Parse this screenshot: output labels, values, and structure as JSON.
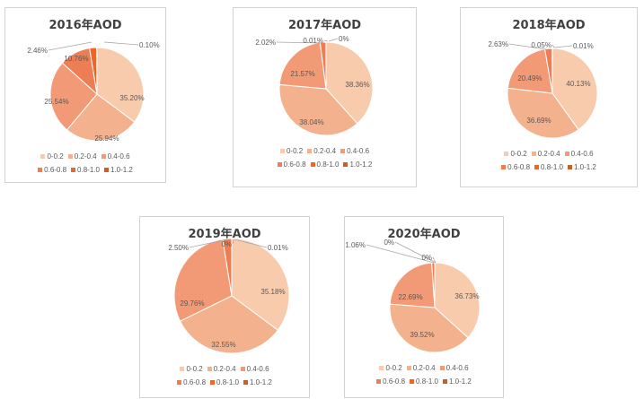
{
  "legend_categories": [
    "0-0.2",
    "0.2-0.4",
    "0.4-0.6",
    "0.6-0.8",
    "0.8-1.0",
    "1.0-1.2"
  ],
  "colors": [
    "#f8cbad",
    "#f4b18e",
    "#f29a76",
    "#ed7d52",
    "#ed6527",
    "#c65f2c"
  ],
  "chart_data": [
    {
      "type": "pie",
      "title": "2016年AOD",
      "categories": [
        "0-0.2",
        "0.2-0.4",
        "0.4-0.6",
        "0.6-0.8",
        "0.8-1.0",
        "1.0-1.2"
      ],
      "values": [
        35.2,
        25.94,
        25.54,
        10.76,
        2.46,
        0.1
      ],
      "labels": [
        "35.20%",
        "25.94%",
        "25.54%",
        "10.76%",
        "2.46%",
        "0.10%"
      ],
      "legend_position": "bottom"
    },
    {
      "type": "pie",
      "title": "2017年AOD",
      "categories": [
        "0-0.2",
        "0.2-0.4",
        "0.4-0.6",
        "0.6-0.8",
        "0.8-1.0",
        "1.0-1.2"
      ],
      "values": [
        38.36,
        38.04,
        21.57,
        2.02,
        0.01,
        0
      ],
      "labels": [
        "38.36%",
        "38.04%",
        "21.57%",
        "2.02%",
        "0.01%",
        "0%"
      ],
      "legend_position": "bottom"
    },
    {
      "type": "pie",
      "title": "2018年AOD",
      "categories": [
        "0-0.2",
        "0.2-0.4",
        "0.4-0.6",
        "0.6-0.8",
        "0.8-1.0",
        "1.0-1.2"
      ],
      "values": [
        40.13,
        36.69,
        20.49,
        2.63,
        0.05,
        0.01
      ],
      "labels": [
        "40.13%",
        "36.69%",
        "20.49%",
        "2.63%",
        "0.05%",
        "0.01%"
      ],
      "legend_position": "bottom"
    },
    {
      "type": "pie",
      "title": "2019年AOD",
      "categories": [
        "0-0.2",
        "0.2-0.4",
        "0.4-0.6",
        "0.6-0.8",
        "0.8-1.0",
        "1.0-1.2"
      ],
      "values": [
        35.18,
        32.55,
        29.76,
        2.5,
        0,
        0.01
      ],
      "labels": [
        "35.18%",
        "32.55%",
        "29.76%",
        "2.50%",
        "0%",
        "0.01%"
      ],
      "legend_position": "bottom"
    },
    {
      "type": "pie",
      "title": "2020年AOD",
      "categories": [
        "0-0.2",
        "0.2-0.4",
        "0.4-0.6",
        "0.6-0.8",
        "0.8-1.0",
        "1.0-1.2"
      ],
      "values": [
        36.73,
        39.52,
        22.69,
        1.06,
        0,
        0
      ],
      "labels": [
        "36.73%",
        "39.52%",
        "22.69%",
        "1.06%",
        "0%",
        "0%"
      ],
      "legend_position": "bottom"
    }
  ]
}
